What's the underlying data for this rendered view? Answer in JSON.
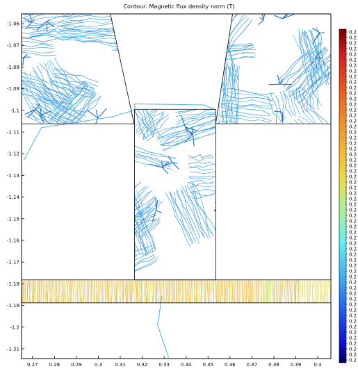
{
  "plot": {
    "title": "Contour: Magnetic flux density norm (T)"
  },
  "chart_data": {
    "type": "contour",
    "title": "Contour: Magnetic flux density norm (T)",
    "xlabel": "",
    "ylabel": "",
    "xlim": [
      0.265,
      0.406
    ],
    "ylim": [
      -1.2145,
      -1.0555
    ],
    "x_ticks": [
      "0.27",
      "0.28",
      "0.29",
      "0.3",
      "0.31",
      "0.32",
      "0.33",
      "0.34",
      "0.35",
      "0.36",
      "0.37",
      "0.38",
      "0.39",
      "0.4"
    ],
    "y_ticks": [
      "-1.06",
      "-1.07",
      "-1.08",
      "-1.09",
      "-1.1",
      "-1.11",
      "-1.12",
      "-1.13",
      "-1.14",
      "-1.15",
      "-1.16",
      "-1.17",
      "-1.18",
      "-1.19",
      "-1.2",
      "-1.21"
    ],
    "grid": false,
    "colorbar": {
      "placement": "right",
      "labels": [
        "0.2",
        "0.2",
        "0.2",
        "0.2",
        "0.2",
        "0.2",
        "0.2",
        "0.2",
        "0.2",
        "0.2",
        "0.2",
        "0.2",
        "0.2",
        "0.2",
        "0.2",
        "0.2",
        "0.2",
        "0.2",
        "0.2",
        "0.2",
        "0.2",
        "0.2",
        "0.2",
        "0.2",
        "0.2",
        "0.2",
        "0.2",
        "0.2",
        "0.2",
        "0.2",
        "0.2",
        "0.2",
        "0.2",
        "0.2",
        "0.2",
        "0.2",
        "0.2",
        "0.2",
        "0.2",
        "0.2",
        "0.2",
        "0.2",
        "0.2",
        "0.2",
        "0.2",
        "0.2",
        "0.2",
        "0.2",
        "0.2",
        "0.2",
        "0.2",
        "0.2",
        "0.2",
        "0.2",
        "0.2",
        "0.2",
        "0.2",
        "0.2",
        "0.2",
        "0.2"
      ],
      "colormap": [
        "#7a0000",
        "#d42020",
        "#f07020",
        "#f4b030",
        "#e8e040",
        "#a8f0a0",
        "#60f0f0",
        "#40b0f0",
        "#2060f0",
        "#1010d0",
        "#000060"
      ]
    },
    "regions": [
      {
        "name": "left-pole",
        "polygon": [
          [
            0.265,
            -1.0555
          ],
          [
            0.3055,
            -1.0555
          ],
          [
            0.3163,
            -1.1062
          ],
          [
            0.265,
            -1.1062
          ]
        ],
        "level_color": "#3aa0e0"
      },
      {
        "name": "right-pole",
        "polygon": [
          [
            0.3612,
            -1.0555
          ],
          [
            0.406,
            -1.0555
          ],
          [
            0.406,
            -1.1062
          ],
          [
            0.3535,
            -1.1062
          ]
        ],
        "level_color": "#3aa0e0"
      },
      {
        "name": "center-tooth",
        "polygon": [
          [
            0.3165,
            -1.0995
          ],
          [
            0.3535,
            -1.0995
          ],
          [
            0.3535,
            -1.1782
          ],
          [
            0.3165,
            -1.1782
          ]
        ],
        "level_color": "#3aa0e0"
      },
      {
        "name": "bottom-strip",
        "polygon": [
          [
            0.265,
            -1.1782
          ],
          [
            0.406,
            -1.1782
          ],
          [
            0.406,
            -1.1888
          ],
          [
            0.265,
            -1.1888
          ]
        ],
        "level_color": "#e8c850"
      }
    ]
  }
}
